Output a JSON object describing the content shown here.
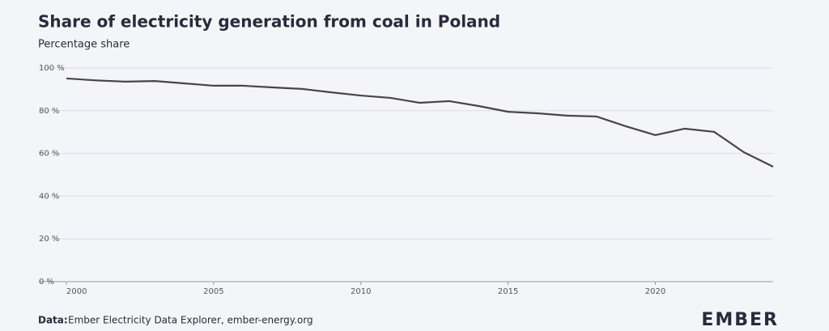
{
  "chart_data": {
    "type": "line",
    "title": "Share of electricity generation from coal in Poland",
    "subtitle": "Percentage share",
    "x": [
      2000,
      2001,
      2002,
      2003,
      2004,
      2005,
      2006,
      2007,
      2008,
      2009,
      2010,
      2011,
      2012,
      2013,
      2014,
      2015,
      2016,
      2017,
      2018,
      2019,
      2020,
      2021,
      2022,
      2023,
      2024
    ],
    "values": [
      95.1,
      94.2,
      93.6,
      93.9,
      92.8,
      91.7,
      91.7,
      90.9,
      90.2,
      88.6,
      87.1,
      86.0,
      83.7,
      84.5,
      82.2,
      79.5,
      78.8,
      77.7,
      77.3,
      72.7,
      68.6,
      71.6,
      70.1,
      60.6,
      53.8
    ],
    "color": "#4a4446",
    "xlim": [
      2000,
      2024
    ],
    "xticks": [
      2000,
      2005,
      2010,
      2015,
      2020
    ],
    "ylim": [
      0,
      100
    ],
    "yticks": [
      {
        "value": 0,
        "label": "0 %"
      },
      {
        "value": 20,
        "label": "20 %"
      },
      {
        "value": 40,
        "label": "40 %"
      },
      {
        "value": 60,
        "label": "60 %"
      },
      {
        "value": 80,
        "label": "80 %"
      },
      {
        "value": 100,
        "label": "100 %"
      }
    ],
    "grid": true,
    "source_label": "Data:",
    "source": "Ember Electricity Data Explorer, ember-energy.org",
    "logo": "EMBER"
  }
}
